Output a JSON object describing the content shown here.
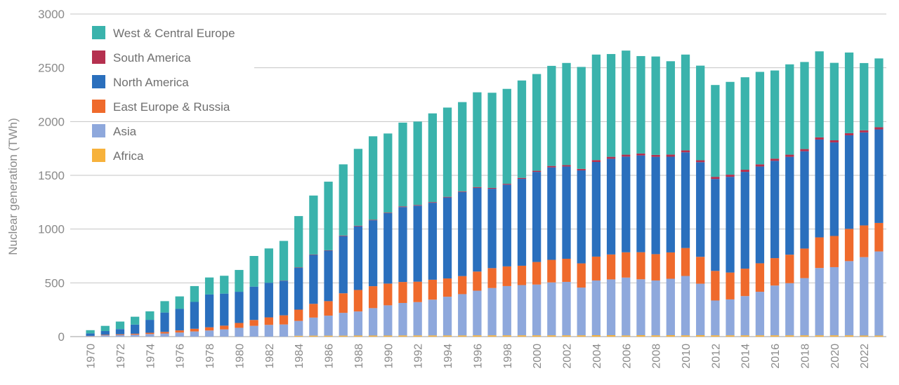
{
  "chart_data": {
    "type": "bar",
    "stacked": true,
    "ylabel": "Nuclear generation (TWh)",
    "xlabel": "",
    "ylim": [
      0,
      3000
    ],
    "yticks": [
      0,
      500,
      1000,
      1500,
      2000,
      2500,
      3000
    ],
    "grid": "horizontal",
    "legend_position": "top-left",
    "categories": [
      "1970",
      "1971",
      "1972",
      "1973",
      "1974",
      "1975",
      "1976",
      "1977",
      "1978",
      "1979",
      "1980",
      "1981",
      "1982",
      "1983",
      "1984",
      "1985",
      "1986",
      "1987",
      "1988",
      "1989",
      "1990",
      "1991",
      "1992",
      "1993",
      "1994",
      "1995",
      "1996",
      "1997",
      "1998",
      "1999",
      "2000",
      "2001",
      "2002",
      "2003",
      "2004",
      "2005",
      "2006",
      "2007",
      "2008",
      "2009",
      "2010",
      "2011",
      "2012",
      "2013",
      "2014",
      "2015",
      "2016",
      "2017",
      "2018",
      "2019",
      "2020",
      "2021",
      "2022",
      "2023"
    ],
    "x_tick_labels": [
      "1970",
      "1972",
      "1974",
      "1976",
      "1978",
      "1980",
      "1982",
      "1984",
      "1986",
      "1988",
      "1990",
      "1992",
      "1994",
      "1996",
      "1998",
      "2000",
      "2002",
      "2004",
      "2006",
      "2008",
      "2010",
      "2012",
      "2014",
      "2016",
      "2018",
      "2020",
      "2022"
    ],
    "series": [
      {
        "name": "Africa",
        "color": "#f7b23b",
        "values": [
          0,
          0,
          0,
          0,
          0,
          0,
          0,
          0,
          0,
          0,
          0,
          0,
          0,
          0,
          8,
          9,
          9,
          9,
          10,
          10,
          10,
          11,
          11,
          11,
          11,
          11,
          12,
          12,
          12,
          12,
          12,
          12,
          12,
          12,
          13,
          13,
          11,
          13,
          12,
          13,
          12,
          13,
          12,
          12,
          12,
          12,
          12,
          12,
          12,
          12,
          12,
          12,
          10,
          10
        ]
      },
      {
        "name": "Asia",
        "color": "#8ea8dc",
        "values": [
          5,
          12,
          15,
          18,
          24,
          29,
          38,
          48,
          57,
          67,
          82,
          100,
          109,
          113,
          138,
          168,
          186,
          212,
          224,
          255,
          281,
          302,
          310,
          333,
          360,
          384,
          415,
          440,
          458,
          467,
          472,
          492,
          497,
          444,
          509,
          519,
          538,
          520,
          510,
          525,
          552,
          479,
          324,
          334,
          365,
          405,
          463,
          485,
          532,
          626,
          634,
          690,
          729,
          782
        ]
      },
      {
        "name": "East Europe & Russia",
        "color": "#ef6a2c",
        "values": [
          2,
          5,
          7,
          9,
          12,
          15,
          20,
          25,
          30,
          35,
          45,
          55,
          70,
          85,
          105,
          128,
          135,
          182,
          200,
          204,
          202,
          195,
          190,
          185,
          170,
          168,
          178,
          185,
          183,
          180,
          210,
          210,
          215,
          225,
          222,
          232,
          235,
          252,
          245,
          245,
          260,
          250,
          275,
          250,
          255,
          265,
          255,
          265,
          275,
          285,
          290,
          300,
          295,
          265
        ]
      },
      {
        "name": "North America",
        "color": "#2a6fbd",
        "values": [
          23,
          35,
          48,
          85,
          120,
          180,
          200,
          250,
          305,
          298,
          290,
          310,
          322,
          321,
          388,
          455,
          469,
          532,
          592,
          613,
          655,
          697,
          707,
          716,
          753,
          782,
          778,
          738,
          760,
          808,
          838,
          860,
          858,
          865,
          880,
          890,
          890,
          900,
          905,
          890,
          890,
          880,
          855,
          890,
          900,
          900,
          905,
          910,
          905,
          910,
          870,
          870,
          865,
          870
        ]
      },
      {
        "name": "South America",
        "color": "#b5304f",
        "values": [
          0,
          0,
          0,
          0,
          0,
          0,
          0,
          0,
          0,
          0,
          0,
          0,
          0,
          2,
          4,
          4,
          4,
          5,
          5,
          5,
          5,
          6,
          6,
          6,
          6,
          6,
          8,
          8,
          8,
          9,
          10,
          13,
          13,
          14,
          18,
          18,
          18,
          18,
          18,
          20,
          18,
          18,
          20,
          20,
          20,
          20,
          20,
          20,
          20,
          20,
          20,
          20,
          20,
          20
        ]
      },
      {
        "name": "West & Central Europe",
        "color": "#3ab3ac",
        "values": [
          30,
          48,
          70,
          73,
          79,
          106,
          116,
          147,
          158,
          166,
          203,
          285,
          319,
          369,
          478,
          548,
          638,
          662,
          715,
          776,
          736,
          779,
          776,
          825,
          830,
          830,
          881,
          885,
          883,
          906,
          900,
          931,
          950,
          948,
          981,
          956,
          968,
          906,
          915,
          868,
          891,
          880,
          854,
          863,
          860,
          860,
          820,
          840,
          810,
          800,
          720,
          750,
          625,
          640
        ]
      }
    ]
  }
}
